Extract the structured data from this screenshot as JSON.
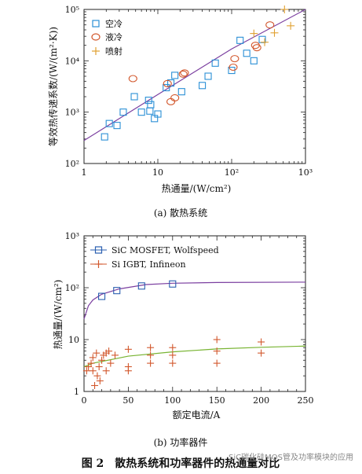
{
  "figure": {
    "caption": "图 2　散热系统和功率器件的热通量对比",
    "watermark": "SiC碳化硅MOS管及功率模块的应用"
  },
  "chart_data": [
    {
      "type": "scatter",
      "caption": "(a)  散热系统",
      "xlabel": "热通量/(W/cm²)",
      "ylabel": "等效热传递系数/(W/(m²·K))",
      "xscale": "log",
      "yscale": "log",
      "xlim": [
        1,
        1000
      ],
      "ylim": [
        100,
        100000
      ],
      "xticks": [
        "1",
        "10",
        "10²",
        "10³"
      ],
      "yticks": [
        "10²",
        "10³",
        "10⁴",
        "10⁵"
      ],
      "legend_position": "top-left",
      "colors": {
        "air": "#2a8fd6",
        "liquid": "#d2572c",
        "jet": "#e0a030",
        "fit": "#7b3fa0"
      },
      "series": [
        {
          "name": "空冷",
          "marker": "square",
          "points": [
            [
              1.9,
              330
            ],
            [
              2.2,
              600
            ],
            [
              2.8,
              550
            ],
            [
              3.4,
              1000
            ],
            [
              4.8,
              2000
            ],
            [
              6,
              1000
            ],
            [
              7.5,
              1700
            ],
            [
              7.8,
              1050
            ],
            [
              8,
              1400
            ],
            [
              9,
              750
            ],
            [
              10,
              920
            ],
            [
              13,
              3000
            ],
            [
              15,
              3700
            ],
            [
              17,
              5200
            ],
            [
              21,
              2500
            ],
            [
              40,
              3300
            ],
            [
              48,
              5000
            ],
            [
              60,
              9000
            ],
            [
              100,
              6500
            ],
            [
              130,
              25000
            ],
            [
              160,
              14000
            ],
            [
              200,
              10000
            ],
            [
              260,
              26000
            ]
          ]
        },
        {
          "name": "液冷",
          "marker": "circle",
          "points": [
            [
              4.6,
              4500
            ],
            [
              13.5,
              3600
            ],
            [
              15,
              1600
            ],
            [
              17,
              1900
            ],
            [
              22,
              5500
            ],
            [
              23,
              5800
            ],
            [
              105,
              7500
            ],
            [
              110,
              11000
            ],
            [
              210,
              20000
            ],
            [
              220,
              18000
            ],
            [
              330,
              50000
            ]
          ]
        },
        {
          "name": "喷射",
          "marker": "plus",
          "points": [
            [
              200,
              34000
            ],
            [
              280,
              23000
            ],
            [
              380,
              35000
            ],
            [
              520,
              100000
            ],
            [
              630,
              48000
            ]
          ]
        },
        {
          "name": "",
          "style": "line",
          "points": [
            [
              1,
              280
            ],
            [
              10,
              2200
            ],
            [
              100,
              17000
            ],
            [
              1000,
              100000
            ]
          ]
        }
      ]
    },
    {
      "type": "scatter",
      "caption": "(b)  功率器件",
      "xlabel": "额定电流/A",
      "ylabel": "热通量/(W/cm²)",
      "xscale": "linear",
      "yscale": "log",
      "xlim": [
        0,
        250
      ],
      "ylim": [
        1,
        1000
      ],
      "xticks": [
        "0",
        "50",
        "100",
        "150",
        "200",
        "250"
      ],
      "yticks": [
        "1",
        "10",
        "10²",
        "10³"
      ],
      "legend_position": "top-left",
      "colors": {
        "sic": "#2a5fb0",
        "si": "#d2572c",
        "sic_fit": "#7b3fa0",
        "si_fit": "#78b432"
      },
      "series": [
        {
          "name": "SiC MOSFET, Wolfspeed",
          "marker": "square",
          "points": [
            [
              20,
              68
            ],
            [
              37,
              88
            ],
            [
              65,
              108
            ],
            [
              100,
              118
            ]
          ]
        },
        {
          "name": "Si IGBT, Infineon",
          "marker": "plus",
          "points": [
            [
              3,
              2.5
            ],
            [
              5,
              3
            ],
            [
              8,
              3.5
            ],
            [
              10,
              2.5
            ],
            [
              10,
              4.5
            ],
            [
              12,
              1.3
            ],
            [
              14,
              5.5
            ],
            [
              15,
              2
            ],
            [
              17,
              3
            ],
            [
              18,
              1.6
            ],
            [
              20,
              4
            ],
            [
              22,
              5
            ],
            [
              25,
              5.5
            ],
            [
              25,
              2.5
            ],
            [
              28,
              6
            ],
            [
              30,
              3.5
            ],
            [
              35,
              5
            ],
            [
              50,
              6.5
            ],
            [
              50,
              3
            ],
            [
              50,
              2.5
            ],
            [
              75,
              7
            ],
            [
              75,
              5
            ],
            [
              75,
              3.5
            ],
            [
              100,
              7
            ],
            [
              100,
              5
            ],
            [
              100,
              3.5
            ],
            [
              150,
              10
            ],
            [
              150,
              6
            ],
            [
              150,
              3.5
            ],
            [
              200,
              9
            ],
            [
              200,
              5.5
            ]
          ]
        },
        {
          "name": "",
          "style": "line",
          "points": [
            [
              0,
              25
            ],
            [
              5,
              45
            ],
            [
              10,
              58
            ],
            [
              20,
              75
            ],
            [
              40,
              95
            ],
            [
              70,
              115
            ],
            [
              100,
              122
            ],
            [
              150,
              126
            ],
            [
              250,
              128
            ]
          ]
        },
        {
          "name": "",
          "style": "line",
          "points": [
            [
              0,
              3
            ],
            [
              10,
              3.5
            ],
            [
              50,
              4.8
            ],
            [
              100,
              5.8
            ],
            [
              150,
              6.6
            ],
            [
              200,
              7.1
            ],
            [
              250,
              7.5
            ]
          ]
        }
      ]
    }
  ]
}
